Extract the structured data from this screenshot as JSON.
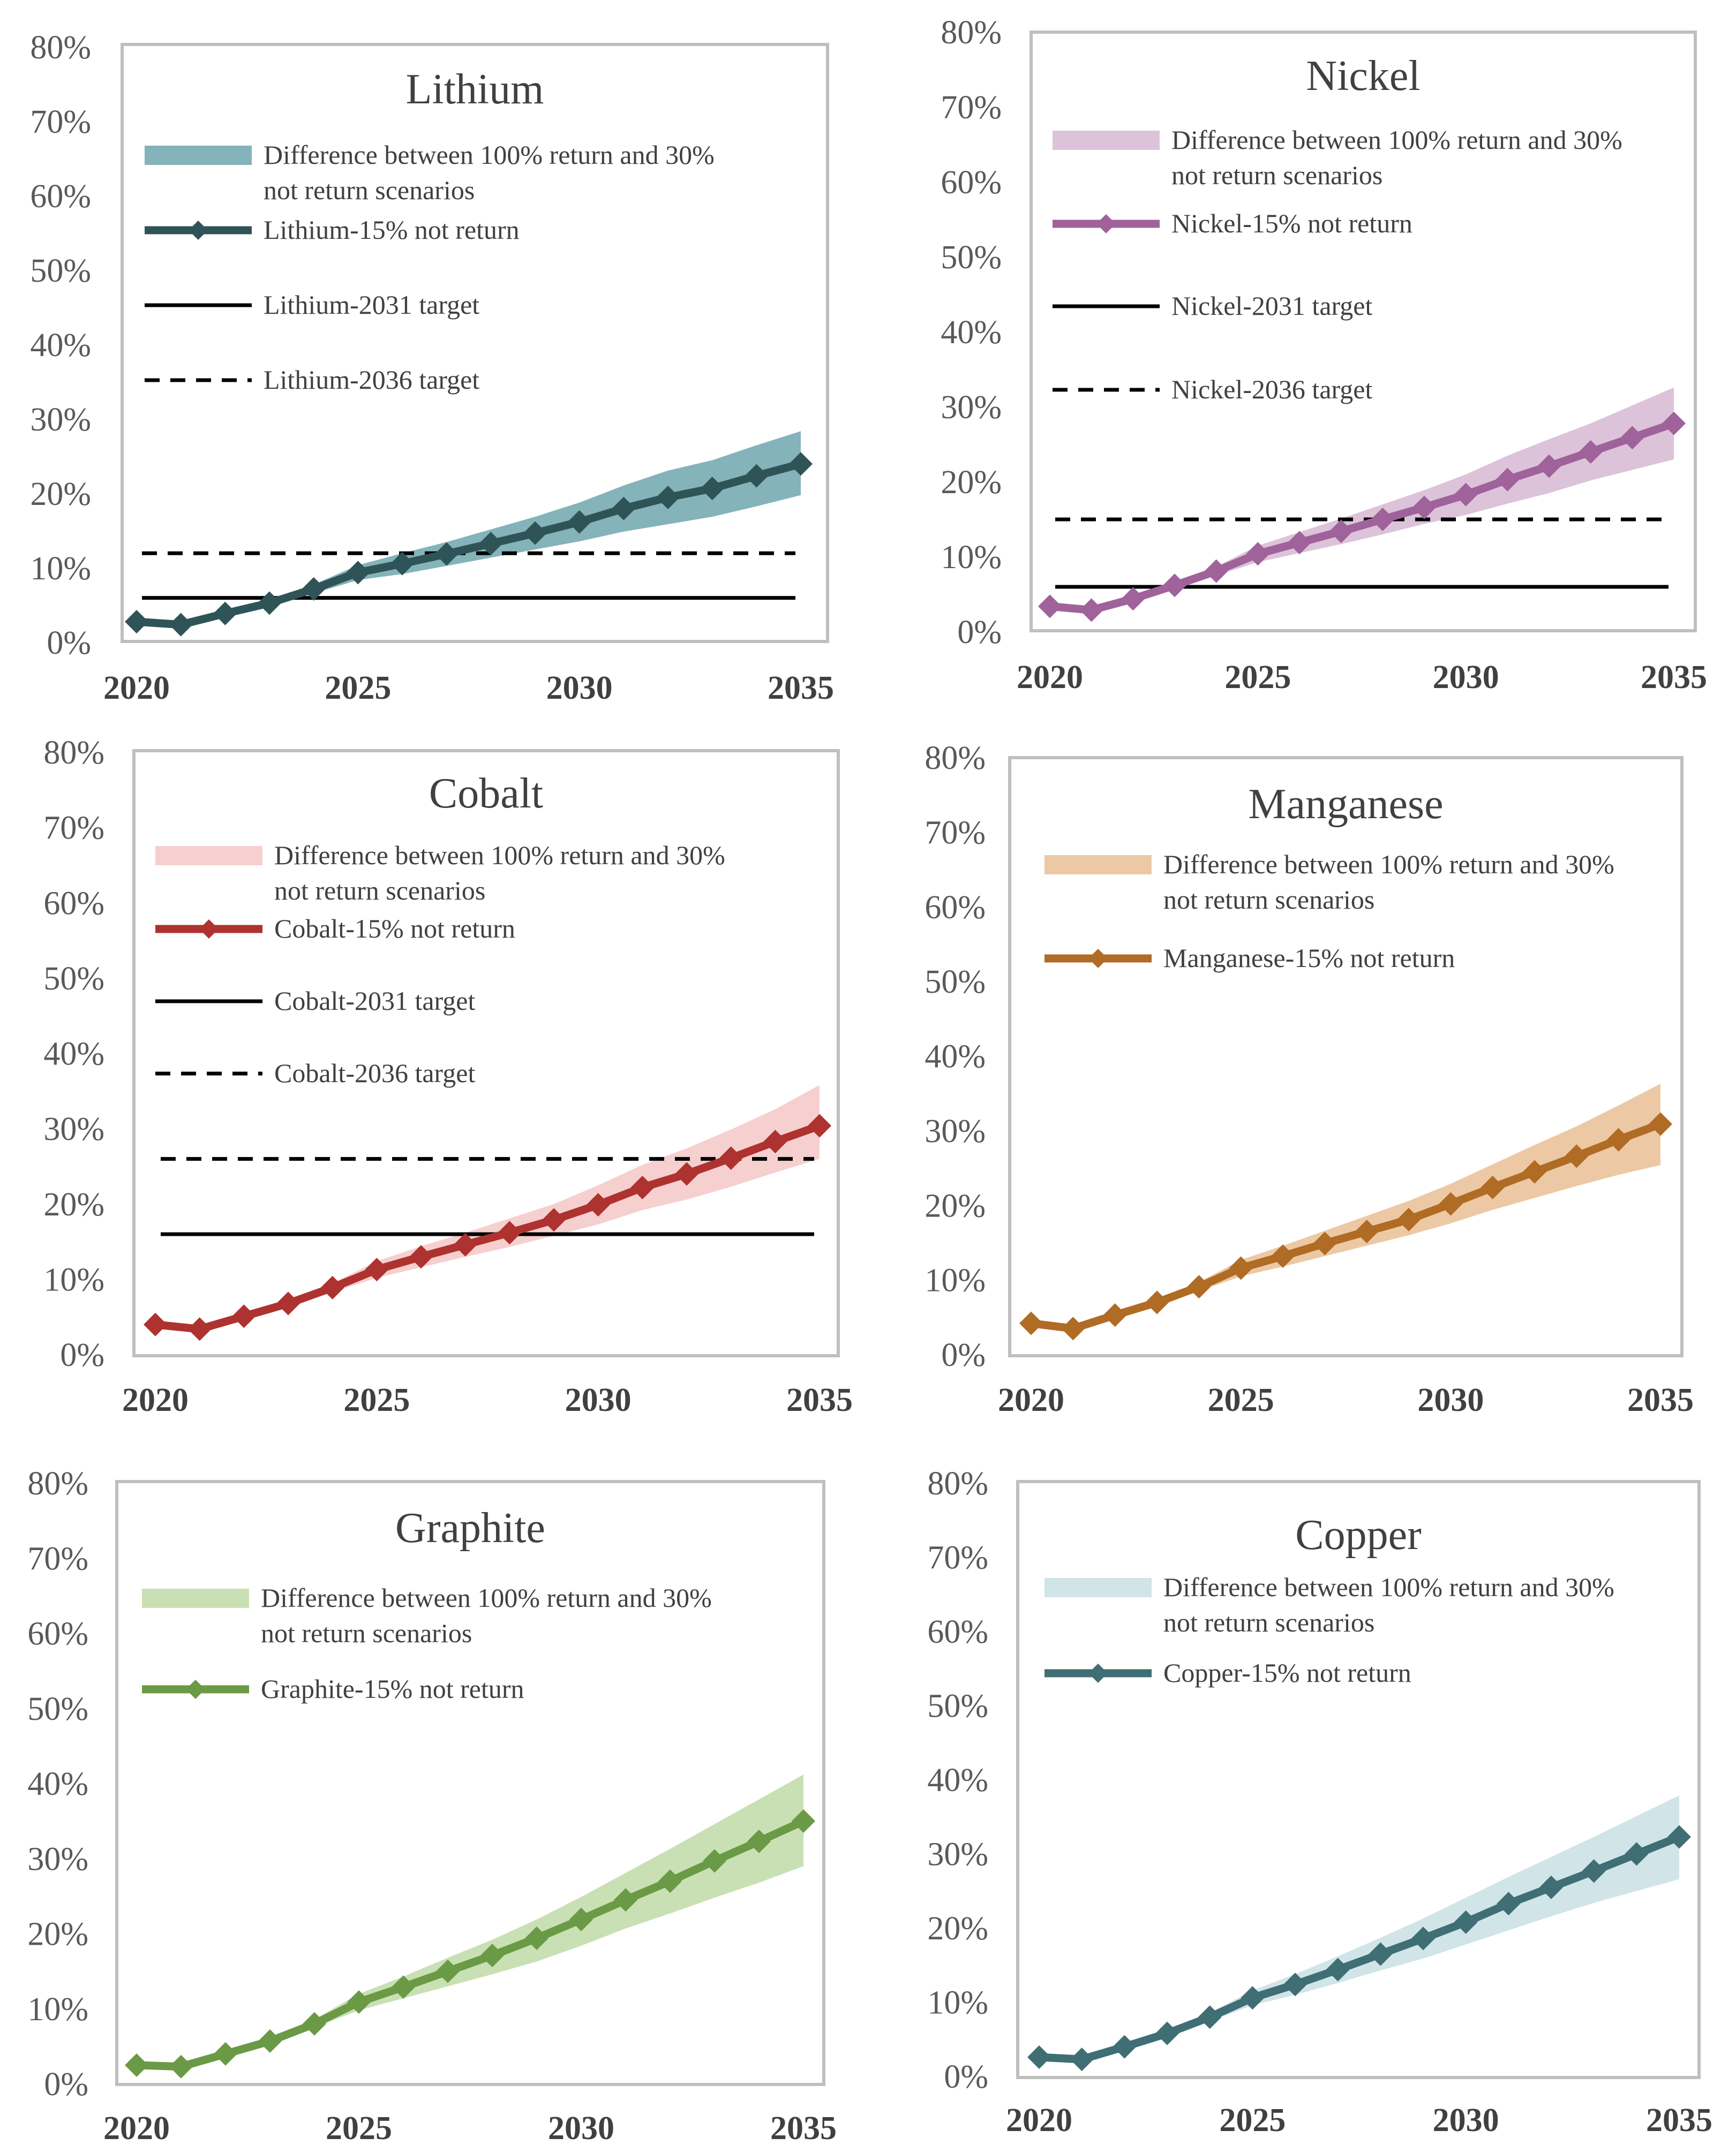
{
  "chart_data": [
    {
      "type": "line",
      "title": "Lithium",
      "x": [
        2020,
        2021,
        2022,
        2023,
        2024,
        2025,
        2026,
        2027,
        2028,
        2029,
        2030,
        2031,
        2032,
        2033,
        2034,
        2035
      ],
      "xticks": [
        "2020",
        "2025",
        "2030",
        "2035"
      ],
      "yticks": [
        "0%",
        "10%",
        "20%",
        "30%",
        "40%",
        "50%",
        "60%",
        "70%",
        "80%"
      ],
      "ylim": [
        0,
        80
      ],
      "series": [
        {
          "name": "Lithium-15% not return",
          "kind": "line",
          "color": "#2f5458",
          "values": [
            2.8,
            2.4,
            3.9,
            5.3,
            7.2,
            9.4,
            10.6,
            11.9,
            13.3,
            14.7,
            16.2,
            18.0,
            19.5,
            20.7,
            22.4,
            24.0
          ]
        },
        {
          "name": "Difference between 100% return and 30% not return scenarios",
          "label_line2": "not return scenarios",
          "kind": "band",
          "color": "#84b3b9",
          "lower": [
            2.8,
            2.4,
            3.8,
            5.0,
            6.6,
            8.4,
            9.2,
            10.3,
            11.4,
            12.5,
            13.6,
            14.9,
            15.9,
            16.9,
            18.3,
            19.8
          ],
          "upper": [
            2.8,
            2.4,
            4.0,
            5.6,
            7.8,
            10.4,
            12.0,
            13.5,
            15.2,
            16.9,
            18.8,
            21.1,
            23.1,
            24.5,
            26.5,
            28.4
          ]
        },
        {
          "name": "Lithium-2031 target",
          "kind": "hline",
          "color": "#000000",
          "value": 6.0
        },
        {
          "name": "Lithium-2036 target",
          "kind": "hline-dashed",
          "color": "#000000",
          "value": 12.0
        }
      ]
    },
    {
      "type": "line",
      "title": "Nickel",
      "x": [
        2020,
        2021,
        2022,
        2023,
        2024,
        2025,
        2026,
        2027,
        2028,
        2029,
        2030,
        2031,
        2032,
        2033,
        2034,
        2035
      ],
      "xticks": [
        "2020",
        "2025",
        "2030",
        "2035"
      ],
      "yticks": [
        "0%",
        "10%",
        "20%",
        "30%",
        "40%",
        "50%",
        "60%",
        "70%",
        "80%"
      ],
      "ylim": [
        0,
        80
      ],
      "series": [
        {
          "name": "Nickel-15% not return",
          "kind": "line",
          "color": "#a0629a",
          "values": [
            3.4,
            2.9,
            4.4,
            6.2,
            8.1,
            10.4,
            11.9,
            13.4,
            15.0,
            16.6,
            18.3,
            20.3,
            22.1,
            24.0,
            25.9,
            27.8
          ]
        },
        {
          "name": "Difference between 100% return and 30% not return scenarios",
          "label_line2": "not return scenarios",
          "kind": "band",
          "color": "#dcc3d9",
          "lower": [
            3.4,
            2.9,
            4.3,
            5.9,
            7.5,
            9.3,
            10.5,
            11.7,
            13.0,
            14.4,
            15.6,
            17.1,
            18.5,
            20.2,
            21.6,
            23.0
          ],
          "upper": [
            3.4,
            2.9,
            4.5,
            6.5,
            8.7,
            11.5,
            13.3,
            15.1,
            17.0,
            18.9,
            21.0,
            23.5,
            25.7,
            27.8,
            30.2,
            32.6
          ]
        },
        {
          "name": "Nickel-2031 target",
          "kind": "hline",
          "color": "#000000",
          "value": 6.0
        },
        {
          "name": "Nickel-2036 target",
          "kind": "hline-dashed",
          "color": "#000000",
          "value": 15.0
        }
      ]
    },
    {
      "type": "line",
      "title": "Cobalt",
      "x": [
        2020,
        2021,
        2022,
        2023,
        2024,
        2025,
        2026,
        2027,
        2028,
        2029,
        2030,
        2031,
        2032,
        2033,
        2034,
        2035
      ],
      "xticks": [
        "2020",
        "2025",
        "2030",
        "2035"
      ],
      "yticks": [
        "0%",
        "10%",
        "20%",
        "30%",
        "40%",
        "50%",
        "60%",
        "70%",
        "80%"
      ],
      "ylim": [
        0,
        80
      ],
      "series": [
        {
          "name": "Cobalt-15% not return",
          "kind": "line",
          "color": "#ae322f",
          "values": [
            4.0,
            3.4,
            5.1,
            6.8,
            8.9,
            11.3,
            13.0,
            14.6,
            16.2,
            17.9,
            19.9,
            22.2,
            24.0,
            26.1,
            28.3,
            30.4
          ]
        },
        {
          "name": "Difference between 100% return and 30% not return scenarios",
          "label_line2": "not return scenarios",
          "kind": "band",
          "color": "#f6cfcf",
          "lower": [
            4.0,
            3.4,
            5.0,
            6.5,
            8.3,
            10.2,
            11.6,
            13.0,
            14.3,
            15.8,
            17.3,
            19.2,
            20.6,
            22.3,
            24.2,
            26.0
          ],
          "upper": [
            4.0,
            3.4,
            5.2,
            7.1,
            9.5,
            12.4,
            14.4,
            16.2,
            18.1,
            20.0,
            22.5,
            25.2,
            27.4,
            29.9,
            32.6,
            35.8
          ]
        },
        {
          "name": "Cobalt-2031 target",
          "kind": "hline",
          "color": "#000000",
          "value": 16.0
        },
        {
          "name": "Cobalt-2036 target",
          "kind": "hline-dashed",
          "color": "#000000",
          "value": 26.0
        }
      ]
    },
    {
      "type": "line",
      "title": "Manganese",
      "x": [
        2020,
        2021,
        2022,
        2023,
        2024,
        2025,
        2026,
        2027,
        2028,
        2029,
        2030,
        2031,
        2032,
        2033,
        2034,
        2035
      ],
      "xticks": [
        "2020",
        "2025",
        "2030",
        "2035"
      ],
      "yticks": [
        "0%",
        "10%",
        "20%",
        "30%",
        "40%",
        "50%",
        "60%",
        "70%",
        "80%"
      ],
      "ylim": [
        0,
        80
      ],
      "series": [
        {
          "name": "Manganese-15% not return",
          "kind": "line",
          "color": "#b06b24",
          "values": [
            4.2,
            3.5,
            5.3,
            7.0,
            9.1,
            11.6,
            13.2,
            14.9,
            16.5,
            18.1,
            20.2,
            22.4,
            24.5,
            26.6,
            28.8,
            30.9
          ]
        },
        {
          "name": "Difference between 100% return and 30% not return scenarios",
          "label_line2": "not return scenarios",
          "kind": "band",
          "color": "#ecc9a4",
          "lower": [
            4.2,
            3.5,
            5.2,
            6.7,
            8.5,
            10.5,
            11.8,
            13.2,
            14.6,
            16.0,
            17.6,
            19.4,
            21.0,
            22.6,
            24.1,
            25.4
          ],
          "upper": [
            4.2,
            3.5,
            5.4,
            7.3,
            9.7,
            12.7,
            14.6,
            16.6,
            18.6,
            20.6,
            22.9,
            25.5,
            28.1,
            30.6,
            33.4,
            36.3
          ]
        }
      ]
    },
    {
      "type": "line",
      "title": "Graphite",
      "x": [
        2020,
        2021,
        2022,
        2023,
        2024,
        2025,
        2026,
        2027,
        2028,
        2029,
        2030,
        2031,
        2032,
        2033,
        2034,
        2035
      ],
      "xticks": [
        "2020",
        "2025",
        "2030",
        "2035"
      ],
      "yticks": [
        "0%",
        "10%",
        "20%",
        "30%",
        "40%",
        "50%",
        "60%",
        "70%",
        "80%"
      ],
      "ylim": [
        0,
        80
      ],
      "series": [
        {
          "name": "Graphite-15% not return",
          "kind": "line",
          "color": "#6a9a45",
          "values": [
            2.5,
            2.3,
            4.0,
            5.7,
            8.0,
            10.9,
            12.9,
            15.0,
            17.1,
            19.4,
            21.9,
            24.5,
            27.0,
            29.7,
            32.3,
            35.0
          ]
        },
        {
          "name": "Difference between 100% return and 30% not return scenarios",
          "label_line2": "not return scenarios",
          "kind": "band",
          "color": "#c9e0b4",
          "lower": [
            2.5,
            2.3,
            3.9,
            5.4,
            7.5,
            9.8,
            11.4,
            13.0,
            14.6,
            16.3,
            18.4,
            20.7,
            22.7,
            24.8,
            26.8,
            29.0
          ],
          "upper": [
            2.5,
            2.3,
            4.1,
            6.0,
            8.6,
            12.0,
            14.3,
            16.8,
            19.2,
            21.9,
            24.9,
            28.1,
            31.3,
            34.6,
            37.9,
            41.2
          ]
        }
      ]
    },
    {
      "type": "line",
      "title": "Copper",
      "x": [
        2020,
        2021,
        2022,
        2023,
        2024,
        2025,
        2026,
        2027,
        2028,
        2029,
        2030,
        2031,
        2032,
        2033,
        2034,
        2035
      ],
      "xticks": [
        "2020",
        "2025",
        "2030",
        "2035"
      ],
      "yticks": [
        "0%",
        "10%",
        "20%",
        "30%",
        "40%",
        "50%",
        "60%",
        "70%",
        "80%"
      ],
      "ylim": [
        0,
        80
      ],
      "series": [
        {
          "name": "Copper-15% not return",
          "kind": "line",
          "color": "#3f6e74",
          "values": [
            2.6,
            2.3,
            4.0,
            5.8,
            8.0,
            10.6,
            12.4,
            14.4,
            16.5,
            18.6,
            20.8,
            23.3,
            25.5,
            27.7,
            30.0,
            32.3
          ]
        },
        {
          "name": "Difference between 100% return and 30% not return scenarios",
          "label_line2": "not return scenarios",
          "kind": "band",
          "color": "#d1e4e7",
          "lower": [
            2.6,
            2.3,
            3.9,
            5.5,
            7.4,
            9.6,
            11.0,
            12.6,
            14.3,
            15.9,
            17.8,
            19.7,
            21.6,
            23.4,
            25.0,
            26.6
          ],
          "upper": [
            2.6,
            2.3,
            4.1,
            6.1,
            8.6,
            11.6,
            13.8,
            16.2,
            18.7,
            21.3,
            24.1,
            26.9,
            29.6,
            32.3,
            35.1,
            37.9
          ]
        }
      ]
    }
  ]
}
